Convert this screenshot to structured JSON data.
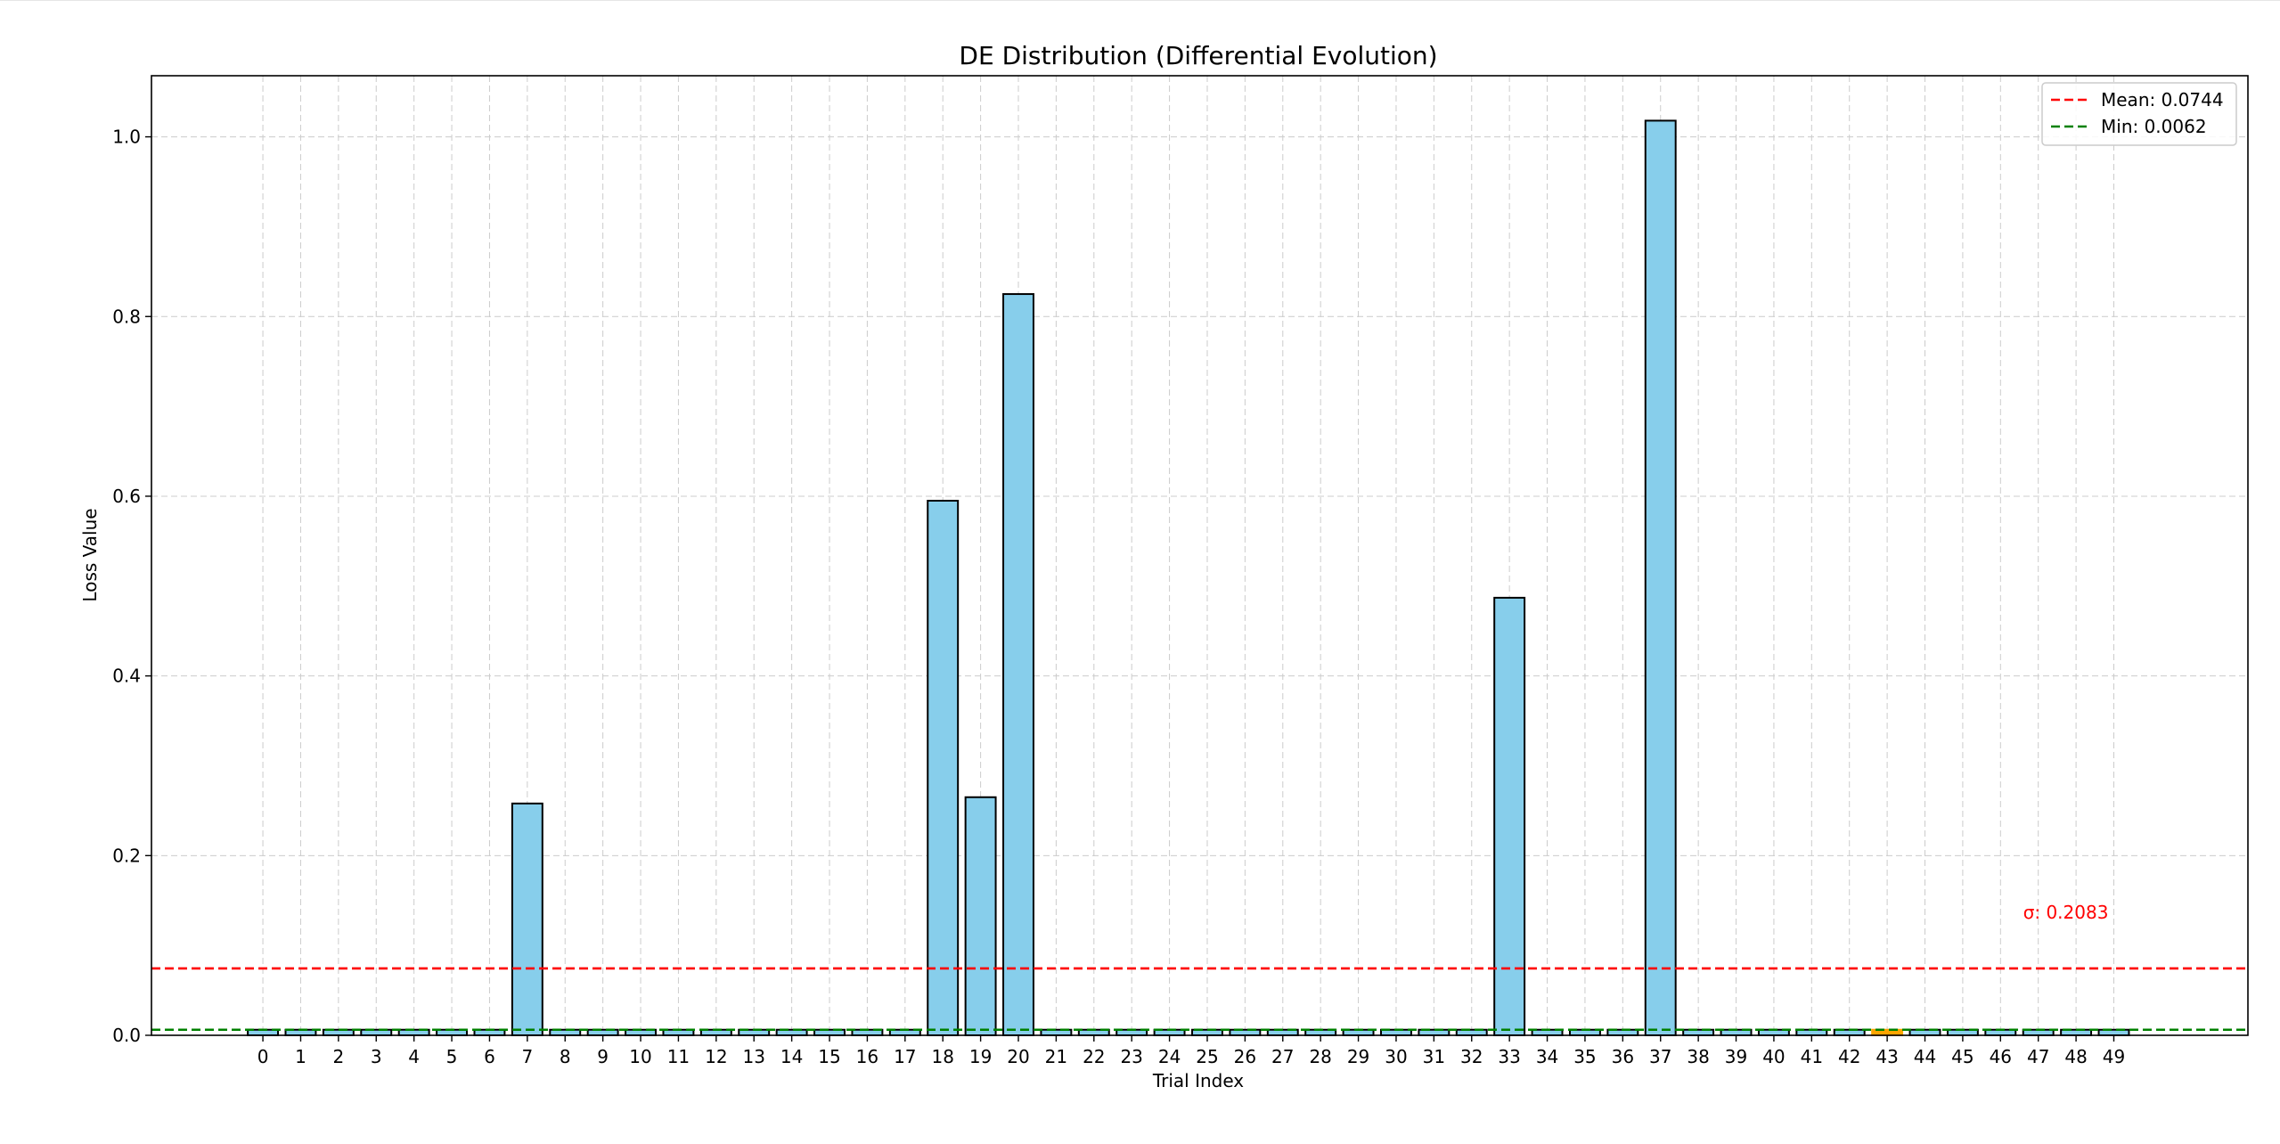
{
  "chart_data": {
    "type": "bar",
    "title": "DE Distribution (Differential Evolution)",
    "xlabel": "Trial Index",
    "ylabel": "Loss Value",
    "categories": [
      "0",
      "1",
      "2",
      "3",
      "4",
      "5",
      "6",
      "7",
      "8",
      "9",
      "10",
      "11",
      "12",
      "13",
      "14",
      "15",
      "16",
      "17",
      "18",
      "19",
      "20",
      "21",
      "22",
      "23",
      "24",
      "25",
      "26",
      "27",
      "28",
      "29",
      "30",
      "31",
      "32",
      "33",
      "34",
      "35",
      "36",
      "37",
      "38",
      "39",
      "40",
      "41",
      "42",
      "43",
      "44",
      "45",
      "46",
      "47",
      "48",
      "49"
    ],
    "values": [
      0.0062,
      0.0062,
      0.0062,
      0.0062,
      0.0062,
      0.0062,
      0.0062,
      0.258,
      0.0062,
      0.0062,
      0.0062,
      0.0062,
      0.0062,
      0.0062,
      0.0062,
      0.0062,
      0.0062,
      0.0062,
      0.595,
      0.265,
      0.825,
      0.0062,
      0.0062,
      0.0062,
      0.0062,
      0.0062,
      0.0062,
      0.0062,
      0.0062,
      0.0062,
      0.0062,
      0.0062,
      0.0062,
      0.487,
      0.0062,
      0.0062,
      0.0062,
      1.018,
      0.0062,
      0.0062,
      0.0062,
      0.0062,
      0.0062,
      0.0062,
      0.0062,
      0.0062,
      0.0062,
      0.0062,
      0.0062,
      0.0062
    ],
    "highlight_index": 43,
    "ylim": [
      0,
      1.068
    ],
    "xlim": [
      -2.95,
      52.55
    ],
    "yticks": [
      0.0,
      0.2,
      0.4,
      0.6,
      0.8,
      1.0
    ],
    "ytick_labels": [
      "0.0",
      "0.2",
      "0.4",
      "0.6",
      "0.8",
      "1.0"
    ],
    "grid": true,
    "hlines": [
      {
        "label": "Mean: 0.0744",
        "value": 0.0744,
        "color": "#ff0000"
      },
      {
        "label": "Min: 0.0062",
        "value": 0.0062,
        "color": "#008000"
      }
    ],
    "annotation": {
      "text": "σ: 0.2083",
      "color": "#ff0000",
      "x": 47,
      "y": 0.13
    },
    "legend_position": "upper right",
    "colors": {
      "bar": "#87ceeb",
      "bar_edge": "#000000",
      "highlight": "#ffa500",
      "grid": "#cccccc"
    }
  }
}
